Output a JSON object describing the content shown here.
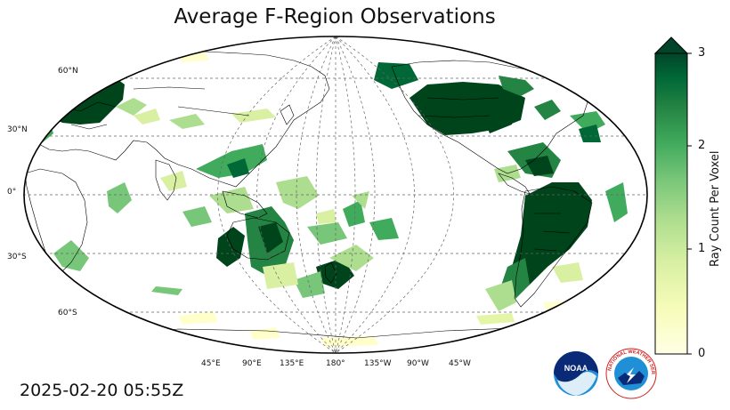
{
  "title": "Average F-Region Observations",
  "timestamp": "2025-02-20 05:55Z",
  "lat_labels": [
    "60°N",
    "30°N",
    "0°",
    "30°S",
    "60°S"
  ],
  "lon_labels": [
    "45°E",
    "90°E",
    "135°E",
    "180°",
    "135°W",
    "90°W",
    "45°W"
  ],
  "colorbar": {
    "title": "Ray Count Per Voxel",
    "ticks": [
      "0",
      "1",
      "2",
      "3"
    ],
    "range": [
      0,
      3
    ],
    "extend": "max",
    "colormap": [
      "#ffffe5",
      "#f7fcb9",
      "#d9f0a3",
      "#addd8e",
      "#78c679",
      "#41ab5d",
      "#238443",
      "#006837",
      "#004529"
    ]
  },
  "logos": {
    "noaa": "NOAA",
    "nws": "NATIONAL WEATHER SERVICE"
  },
  "colors": {
    "land_outline": "#000000",
    "grid": "#666666",
    "high": "#00441b",
    "mid": "#41ab5d",
    "low": "#e5f5a8"
  }
}
